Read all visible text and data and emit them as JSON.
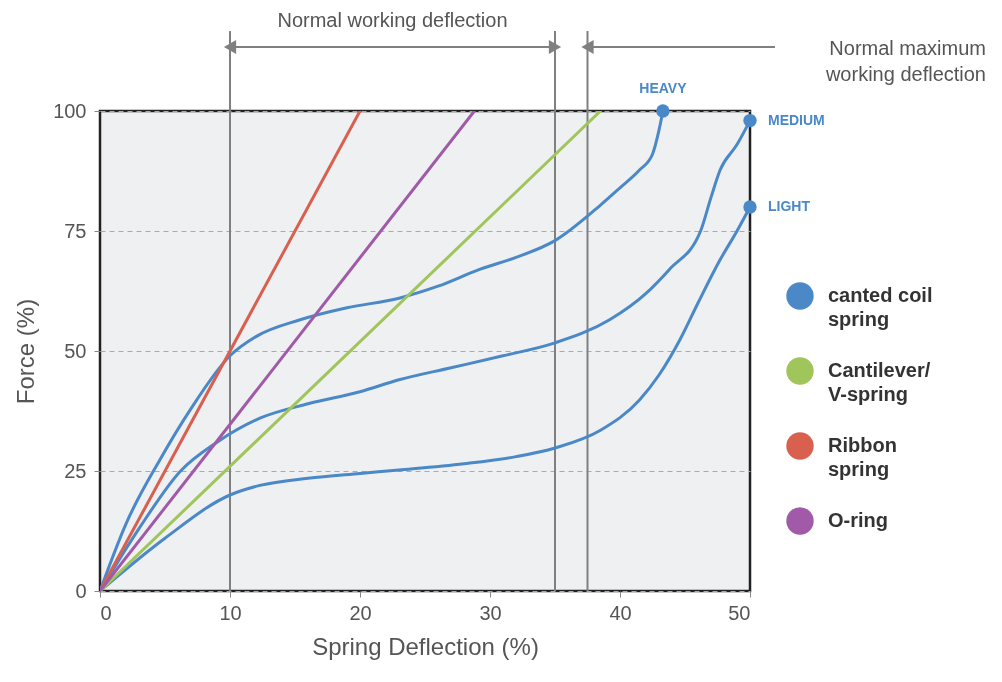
{
  "chart_data": {
    "type": "line",
    "xlabel": "Spring Deflection (%)",
    "ylabel": "Force (%)",
    "xlim": [
      0,
      50
    ],
    "ylim": [
      0,
      100
    ],
    "xticks": [
      0,
      10,
      20,
      30,
      40,
      50
    ],
    "yticks": [
      0,
      25,
      50,
      75,
      100
    ],
    "grid": "y",
    "legend": "right",
    "series": [
      {
        "name": "HEAVY",
        "color": "#4a88c8",
        "x": [
          0,
          2,
          4.6,
          7,
          10,
          12,
          15.4,
          19,
          23,
          26,
          29.2,
          32,
          35,
          38.5,
          40,
          41.5,
          42.5,
          43,
          43.3
        ],
        "values": [
          0,
          14,
          27.3,
          38,
          49,
          53,
          56.5,
          59,
          61,
          63.5,
          67,
          69.5,
          73,
          80.4,
          84,
          87.7,
          91,
          96,
          100
        ]
      },
      {
        "name": "MEDIUM",
        "color": "#4a88c8",
        "x": [
          0,
          3,
          6.2,
          9,
          12.3,
          16,
          20,
          23,
          27,
          31,
          35,
          39.2,
          42,
          43.8,
          46.2,
          47,
          47.7,
          49,
          50
        ],
        "values": [
          0,
          13,
          25,
          31,
          36,
          39,
          41.5,
          44,
          46.5,
          49,
          51.7,
          56.5,
          62,
          67,
          75,
          82,
          87.7,
          93,
          98
        ]
      },
      {
        "name": "LIGHT",
        "color": "#4a88c8",
        "x": [
          0,
          5,
          10,
          12.3,
          16,
          20,
          23,
          28,
          32,
          35,
          38.5,
          41.5,
          43,
          44.6,
          46,
          47.7,
          49,
          50
        ],
        "values": [
          0,
          11,
          20,
          22,
          23.5,
          24.5,
          25.2,
          26.5,
          28,
          29.8,
          33.5,
          39.8,
          45,
          52.3,
          60,
          69,
          75,
          80
        ]
      },
      {
        "name": "Cantilever/V-spring",
        "color": "#a0c55a",
        "x": [
          0,
          38.5
        ],
        "values": [
          0,
          100
        ]
      },
      {
        "name": "Ribbon spring",
        "color": "#d9604f",
        "x": [
          0,
          20
        ],
        "values": [
          0,
          100
        ]
      },
      {
        "name": "O-ring",
        "color": "#a05aa8",
        "x": [
          0,
          28.8
        ],
        "values": [
          0,
          100
        ]
      }
    ],
    "ref_lines": [
      {
        "axis": "x",
        "value": 10,
        "color": "#808080"
      },
      {
        "axis": "x",
        "value": 35,
        "color": "#808080"
      },
      {
        "axis": "x",
        "value": 37.5,
        "color": "#808080"
      }
    ],
    "annotations": [
      "Normal working deflection",
      "Normal maximum\nworking deflection",
      "canted coil spring"
    ]
  }
}
